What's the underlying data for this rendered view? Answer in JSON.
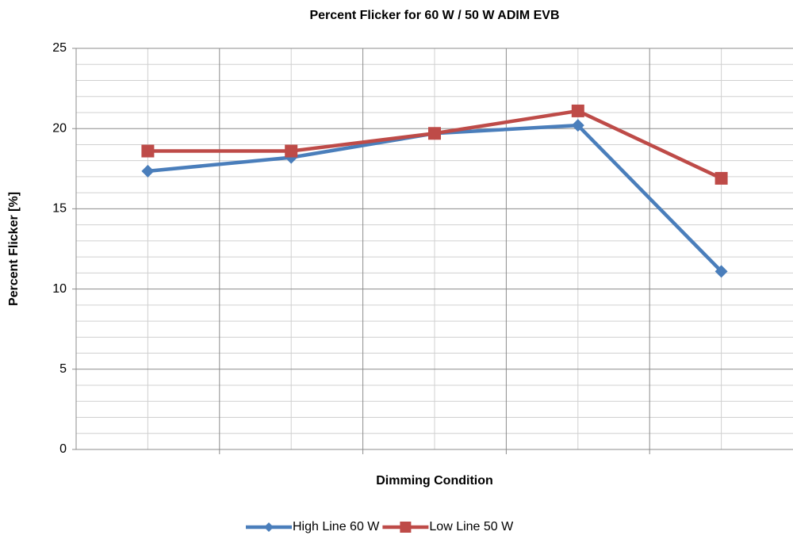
{
  "chart_data": {
    "type": "line",
    "title": "Percent Flicker for 60 W / 50 W ADIM EVB",
    "x_label": "Dimming Condition",
    "y_label": "Percent Flicker [%]",
    "categories": [
      null,
      null,
      null,
      null,
      null
    ],
    "series": [
      {
        "name": "High Line 60 W",
        "color": "#4a7ebb",
        "marker": "diamond",
        "values": [
          17.35,
          18.2,
          19.7,
          20.2,
          11.1
        ]
      },
      {
        "name": "Low Line 50 W",
        "color": "#be4b48",
        "marker": "square",
        "values": [
          18.6,
          18.6,
          19.7,
          21.1,
          16.9
        ]
      }
    ],
    "ylim": [
      0,
      25
    ],
    "yticks": [
      0,
      5,
      10,
      15,
      20,
      25
    ],
    "minor_yticks": [
      1,
      2,
      3,
      4,
      6,
      7,
      8,
      9,
      11,
      12,
      13,
      14,
      16,
      17,
      18,
      19,
      21,
      22,
      23,
      24
    ],
    "grid": true,
    "legend": "bottom"
  }
}
